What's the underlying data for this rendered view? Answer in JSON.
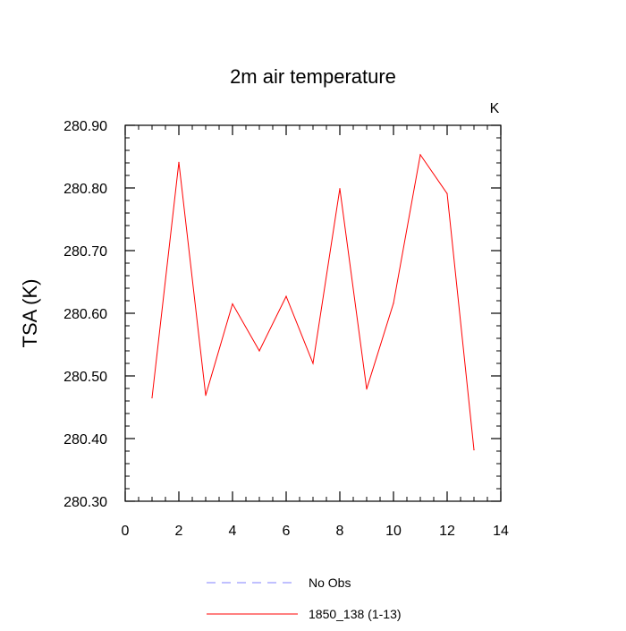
{
  "chart_data": {
    "type": "line",
    "title": "2m air temperature",
    "ylabel": "TSA  (K)",
    "corner_unit": "K",
    "xlim": [
      0,
      14
    ],
    "ylim": [
      280.3,
      280.9
    ],
    "x_ticks": [
      0,
      2,
      4,
      6,
      8,
      10,
      12,
      14
    ],
    "x_tick_labels": [
      "0",
      "2",
      "4",
      "6",
      "8",
      "10",
      "12",
      "14"
    ],
    "y_ticks": [
      280.3,
      280.4,
      280.5,
      280.6,
      280.7,
      280.8,
      280.9
    ],
    "y_tick_labels": [
      "280.30",
      "280.40",
      "280.50",
      "280.60",
      "280.70",
      "280.80",
      "280.90"
    ],
    "series": [
      {
        "name": "1850_138 (1-13)",
        "color": "#ff0000",
        "style": "solid",
        "x": [
          1,
          2,
          3,
          4,
          5,
          6,
          7,
          8,
          9,
          10,
          11,
          12,
          13
        ],
        "values": [
          280.465,
          280.841,
          280.469,
          280.615,
          280.54,
          280.627,
          280.52,
          280.799,
          280.479,
          280.616,
          280.853,
          280.791,
          280.382
        ]
      }
    ],
    "legend": {
      "position": "bottom",
      "entries": [
        {
          "label": "No Obs",
          "color": "#8080ff",
          "style": "dashed"
        },
        {
          "label": "1850_138 (1-13)",
          "color": "#ff0000",
          "style": "solid"
        }
      ]
    }
  }
}
